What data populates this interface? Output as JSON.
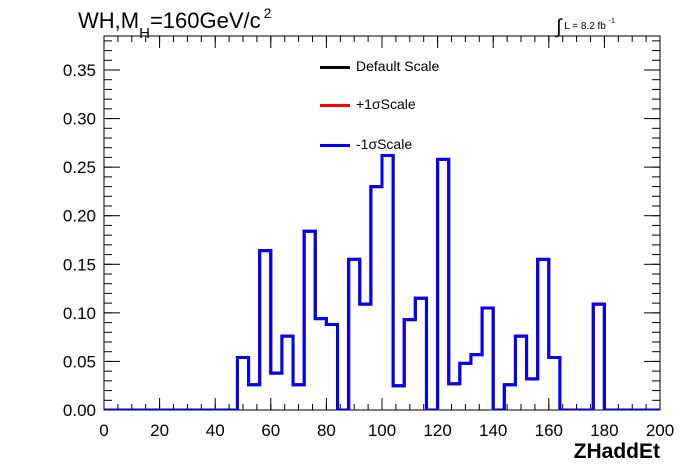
{
  "title": {
    "main_prefix": "WH,M",
    "subscript": "H",
    "main_suffix": "=160GeV/c",
    "superscript": "2"
  },
  "luminosity": {
    "integral": "∫",
    "text": "L = 8.2 fb",
    "exponent": "-1"
  },
  "chart_data": {
    "type": "line",
    "style": "step histogram",
    "xlabel": "ZHaddEt",
    "ylabel": "",
    "xlim": [
      0,
      200
    ],
    "ylim": [
      0,
      0.385
    ],
    "x_ticks": [
      0,
      20,
      40,
      60,
      80,
      100,
      120,
      140,
      160,
      180,
      200
    ],
    "y_ticks": [
      "0.00",
      "0.05",
      "0.10",
      "0.15",
      "0.20",
      "0.25",
      "0.30",
      "0.35"
    ],
    "bin_edges": [
      0,
      4,
      8,
      12,
      16,
      20,
      24,
      28,
      32,
      36,
      40,
      44,
      48,
      52,
      56,
      60,
      64,
      68,
      72,
      76,
      80,
      84,
      88,
      92,
      96,
      100,
      104,
      108,
      112,
      116,
      120,
      124,
      128,
      132,
      136,
      140,
      144,
      148,
      152,
      156,
      160,
      164,
      168,
      172,
      176,
      180,
      184,
      188,
      192,
      196,
      200
    ],
    "series": [
      {
        "name": "Default Scale",
        "color": "#000000",
        "values": [
          0,
          0,
          0,
          0,
          0,
          0,
          0,
          0,
          0,
          0,
          0,
          0,
          0.054,
          0.026,
          0.164,
          0.038,
          0.076,
          0.026,
          0.184,
          0.094,
          0.088,
          0,
          0.155,
          0.109,
          0.23,
          0.262,
          0.025,
          0.093,
          0.115,
          0,
          0.258,
          0.027,
          0.048,
          0.057,
          0.105,
          0,
          0.026,
          0.076,
          0.032,
          0.155,
          0.054,
          0,
          0,
          0,
          0.109,
          0,
          0,
          0,
          0,
          0
        ]
      },
      {
        "name": "+1σScale",
        "color": "#ff0000",
        "values": [
          0,
          0,
          0,
          0,
          0,
          0,
          0,
          0,
          0,
          0,
          0,
          0,
          0.054,
          0.026,
          0.164,
          0.038,
          0.076,
          0.026,
          0.184,
          0.094,
          0.088,
          0,
          0.155,
          0.109,
          0.23,
          0.262,
          0.025,
          0.093,
          0.115,
          0,
          0.258,
          0.027,
          0.048,
          0.057,
          0.105,
          0,
          0.026,
          0.076,
          0.032,
          0.155,
          0.054,
          0,
          0,
          0,
          0.109,
          0,
          0,
          0,
          0,
          0
        ]
      },
      {
        "name": "-1σScale",
        "color": "#0000ff",
        "values": [
          0,
          0,
          0,
          0,
          0,
          0,
          0,
          0,
          0,
          0,
          0,
          0,
          0.054,
          0.026,
          0.164,
          0.038,
          0.076,
          0.026,
          0.184,
          0.094,
          0.088,
          0,
          0.155,
          0.109,
          0.23,
          0.262,
          0.025,
          0.093,
          0.115,
          0,
          0.258,
          0.027,
          0.048,
          0.057,
          0.105,
          0,
          0.026,
          0.076,
          0.032,
          0.155,
          0.054,
          0,
          0,
          0,
          0.109,
          0,
          0,
          0,
          0,
          0
        ]
      }
    ],
    "legend_position": "top-center",
    "grid": false
  }
}
